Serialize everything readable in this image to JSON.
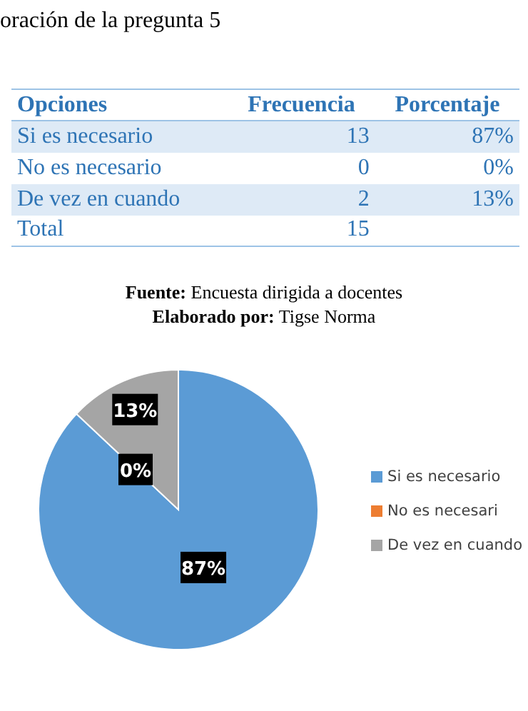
{
  "chart_data": {
    "type": "pie",
    "title": "oración de la pregunta 5",
    "categories": [
      "Si es necesario",
      "No es necesari",
      "De vez en cuando"
    ],
    "values": [
      87,
      0,
      13
    ],
    "colors": [
      "#5b9bd5",
      "#ed7d31",
      "#a5a5a5"
    ],
    "value_labels": [
      "87%",
      "0%",
      "13%"
    ],
    "legend": "right",
    "annotations": [
      "Opciones",
      "Frecuencia",
      "Porcentaje",
      "Si es necesario",
      "13",
      "87%",
      "No es necesario",
      "0",
      "0%",
      "De vez en cuando",
      "2",
      "13%",
      "Total",
      "15",
      "Fuente: Encuesta dirigida a docentes",
      "Elaborado por: Tigse Norma"
    ]
  }
}
